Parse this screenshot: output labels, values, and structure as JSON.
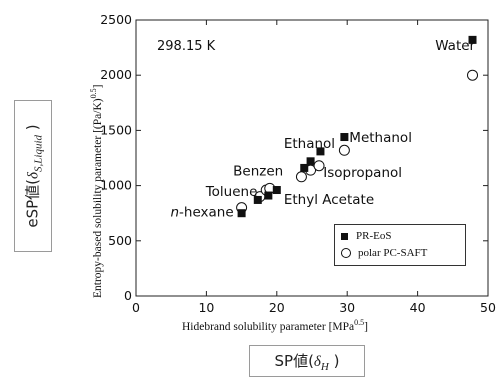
{
  "chart_data": {
    "type": "scatter",
    "title": "",
    "annotation": "298.15 K",
    "xlabel": "Hidebrand solubility parameter [MPa",
    "xlabel_sup": "0.5",
    "xlabel_end": "]",
    "ylabel": "Entropy-based solubility parameter [(Pa/K)",
    "ylabel_sup": "0.5",
    "ylabel_end": "]",
    "xlim": [
      0,
      50
    ],
    "ylim": [
      0,
      2500
    ],
    "xticks": [
      0,
      10,
      20,
      30,
      40,
      50
    ],
    "yticks": [
      0,
      500,
      1000,
      1500,
      2000,
      2500
    ],
    "series": [
      {
        "name": "PR-EoS",
        "marker": "filled-square",
        "color": "#111111",
        "points": [
          {
            "x": 15.0,
            "y": 750
          },
          {
            "x": 17.3,
            "y": 870
          },
          {
            "x": 18.8,
            "y": 910
          },
          {
            "x": 20.0,
            "y": 960
          },
          {
            "x": 23.9,
            "y": 1160
          },
          {
            "x": 24.8,
            "y": 1220
          },
          {
            "x": 26.2,
            "y": 1310
          },
          {
            "x": 29.6,
            "y": 1440
          },
          {
            "x": 47.8,
            "y": 2320
          }
        ]
      },
      {
        "name": "polar PC-SAFT",
        "marker": "open-circle",
        "color": "#111111",
        "points": [
          {
            "x": 15.0,
            "y": 800
          },
          {
            "x": 17.6,
            "y": 900
          },
          {
            "x": 18.5,
            "y": 960
          },
          {
            "x": 19.0,
            "y": 975
          },
          {
            "x": 23.5,
            "y": 1080
          },
          {
            "x": 24.8,
            "y": 1140
          },
          {
            "x": 26.0,
            "y": 1180
          },
          {
            "x": 29.6,
            "y": 1320
          },
          {
            "x": 47.8,
            "y": 2000
          }
        ]
      }
    ],
    "point_labels": [
      {
        "text": "Water",
        "x": 42.5,
        "y": 2230
      },
      {
        "text": "Ethanol",
        "x": 21.0,
        "y": 1340
      },
      {
        "text": "Methanol",
        "x": 30.3,
        "y": 1395
      },
      {
        "text": "Isopropanol",
        "x": 26.6,
        "y": 1080
      },
      {
        "text": "Benzen",
        "x": 13.8,
        "y": 1090
      },
      {
        "text": "Toluene",
        "x": 9.9,
        "y": 905
      },
      {
        "text": "Ethyl Acetate",
        "x": 21.0,
        "y": 835
      },
      {
        "text": "-hexane",
        "prefix": "n",
        "x": 4.9,
        "y": 720
      }
    ]
  },
  "annotations": {
    "y_box": {
      "prefix": "eSP値(",
      "symbol": "δ",
      "sub": "S,Liquid",
      "suffix": " )"
    },
    "x_box": {
      "prefix": "SP値(",
      "symbol": "δ",
      "sub": "H",
      "suffix": " )"
    }
  }
}
